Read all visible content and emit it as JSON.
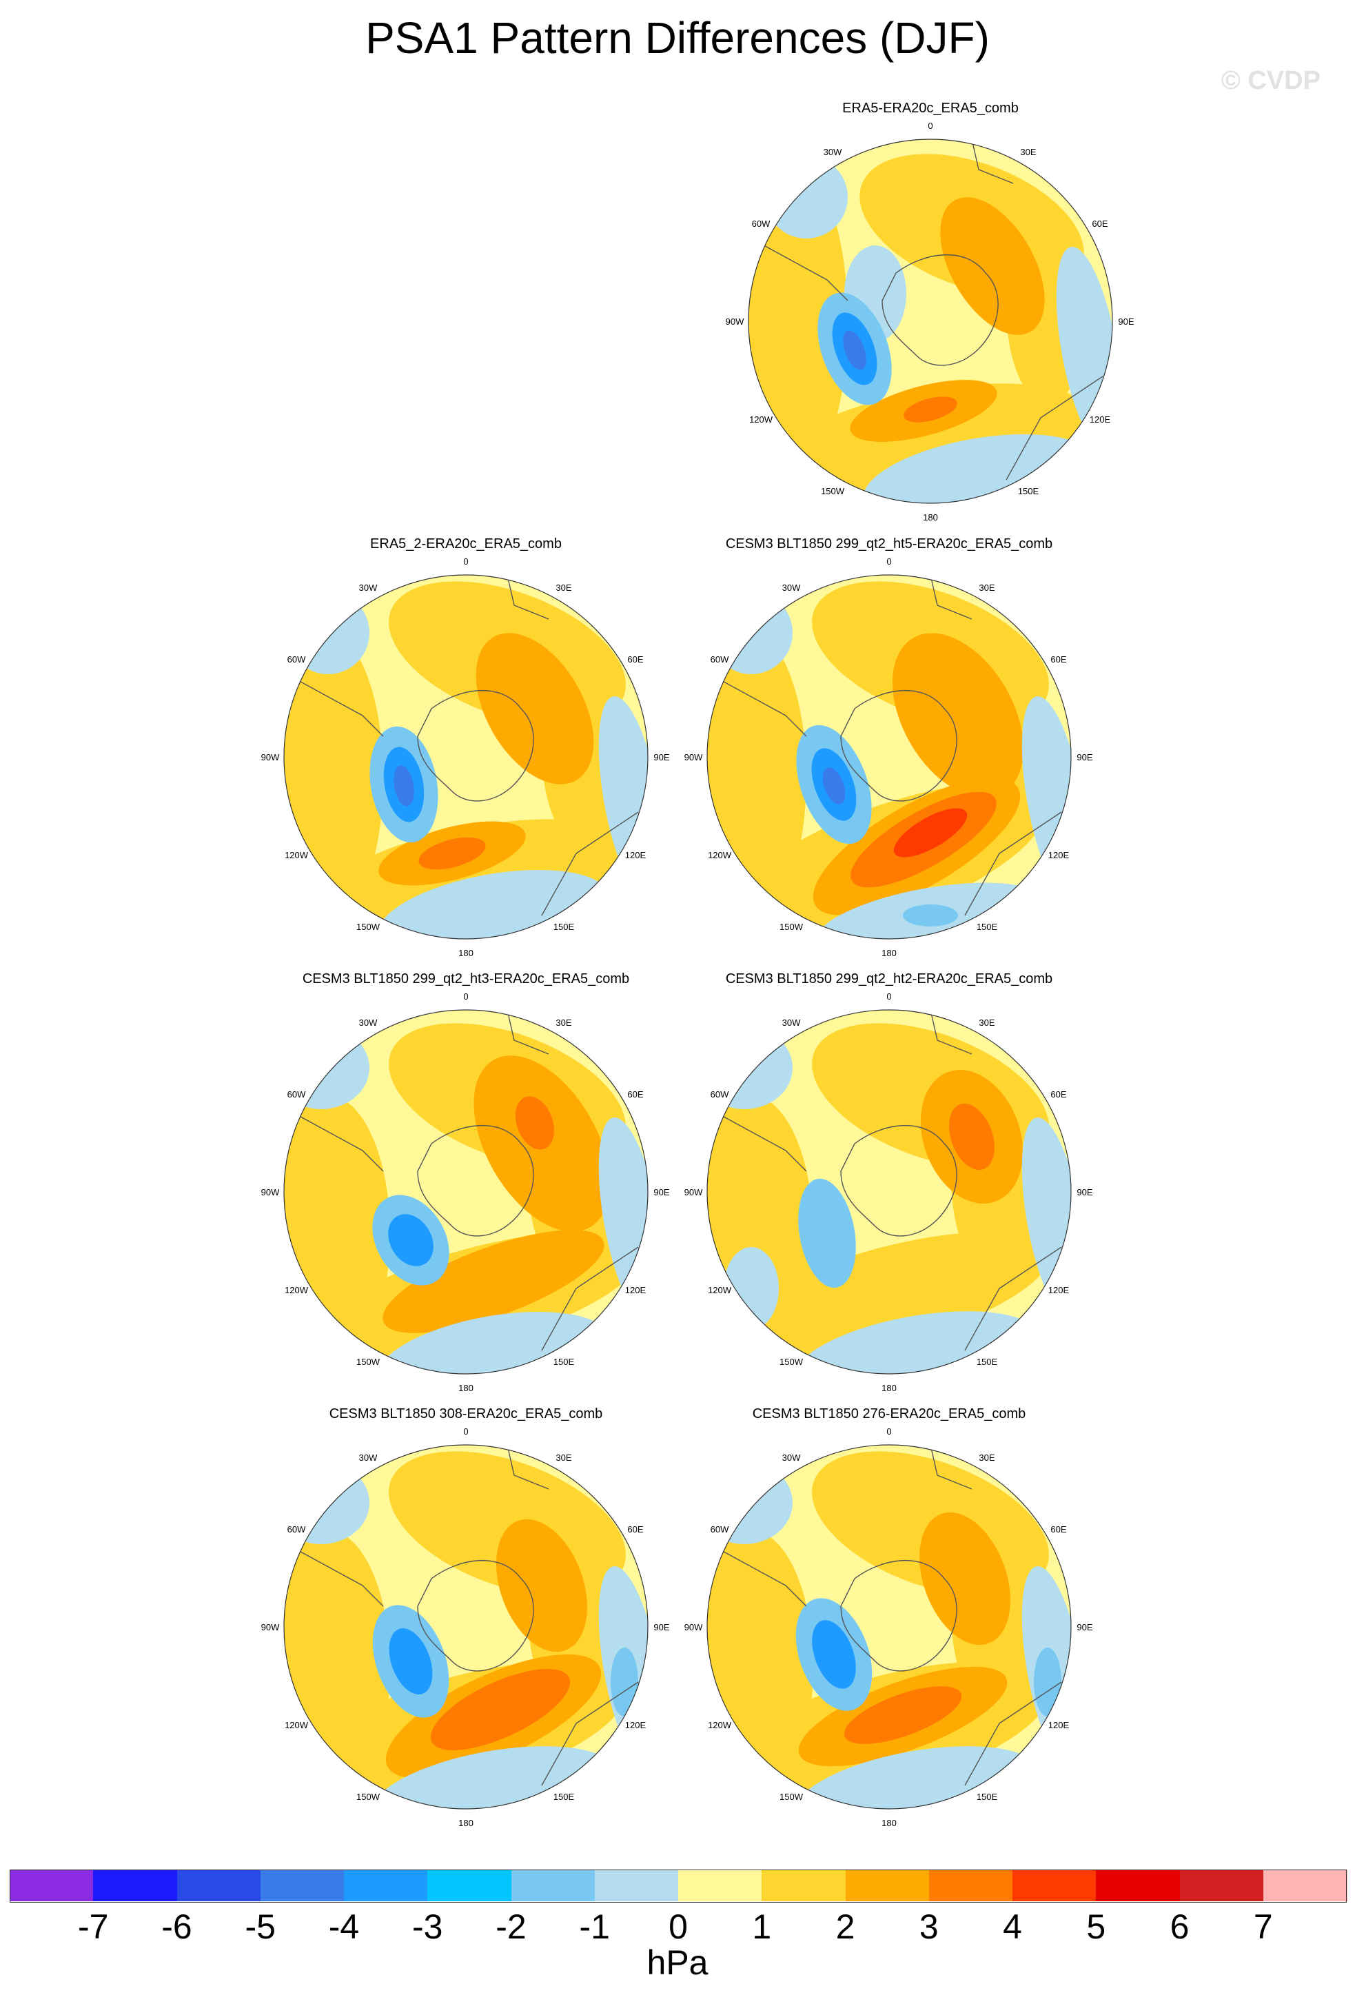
{
  "title": "PSA1 Pattern Differences (DJF)",
  "copyright": "© CVDP",
  "lon_labels": {
    "top": "0",
    "r30": "30E",
    "r60": "60E",
    "r90": "90E",
    "r120": "120E",
    "r150": "150E",
    "bottom": "180",
    "l150": "150W",
    "l120": "120W",
    "l90": "90W",
    "l60": "60W",
    "l30": "30W"
  },
  "panels": [
    {
      "title": "ERA5-ERA20c_ERA5_comb"
    },
    {
      "title": "ERA5_2-ERA20c_ERA5_comb"
    },
    {
      "title": "CESM3 BLT1850 299_qt2_ht5-ERA20c_ERA5_comb"
    },
    {
      "title": "CESM3 BLT1850 299_qt2_ht3-ERA20c_ERA5_comb"
    },
    {
      "title": "CESM3 BLT1850 299_qt2_ht2-ERA20c_ERA5_comb"
    },
    {
      "title": "CESM3 BLT1850 308-ERA20c_ERA5_comb"
    },
    {
      "title": "CESM3 BLT1850 276-ERA20c_ERA5_comb"
    }
  ],
  "colorbar": {
    "labels": [
      "-7",
      "-6",
      "-5",
      "-4",
      "-3",
      "-2",
      "-1",
      "0",
      "1",
      "2",
      "3",
      "4",
      "5",
      "6",
      "7"
    ],
    "colors": [
      "#8a2be2",
      "#1a1aff",
      "#2a4be5",
      "#3a7bea",
      "#1e9bff",
      "#00c5ff",
      "#78c8f2",
      "#b4ddf0",
      "#fff99a",
      "#ffd630",
      "#ffaa00",
      "#ff7a00",
      "#ff3a00",
      "#e80000",
      "#d02020",
      "#ffb4b4"
    ],
    "units": "hPa"
  }
}
